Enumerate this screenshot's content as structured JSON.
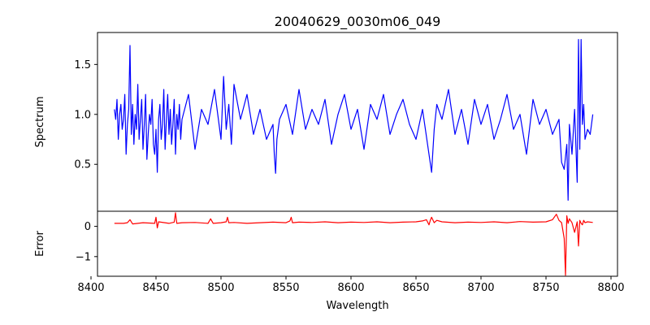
{
  "chart_data": [
    {
      "type": "line",
      "title": "20040629_0030m06_049",
      "ylabel": "Spectrum",
      "xlim": [
        8405,
        8805
      ],
      "ylim": [
        0.03,
        1.82
      ],
      "yticks": [
        0.5,
        1.0,
        1.5
      ],
      "ytick_labels": [
        "0.5",
        "1.0",
        "1.5"
      ],
      "grid": false,
      "series": [
        {
          "color": "#0000ff",
          "x": [
            8418,
            8419,
            8420,
            8421,
            8422,
            8423,
            8424,
            8425,
            8426,
            8427,
            8428,
            8429,
            8430,
            8431,
            8432,
            8433,
            8434,
            8435,
            8436,
            8437,
            8438,
            8439,
            8440,
            8441,
            8442,
            8443,
            8444,
            8445,
            8446,
            8447,
            8448,
            8449,
            8450,
            8451,
            8452,
            8453,
            8454,
            8455,
            8456,
            8457,
            8458,
            8459,
            8460,
            8461,
            8462,
            8463,
            8464,
            8465,
            8466,
            8467,
            8468,
            8469,
            8470,
            8475,
            8480,
            8485,
            8490,
            8495,
            8500,
            8502,
            8504,
            8506,
            8508,
            8510,
            8515,
            8520,
            8525,
            8530,
            8535,
            8540,
            8541,
            8542,
            8543,
            8545,
            8550,
            8555,
            8560,
            8565,
            8570,
            8575,
            8580,
            8585,
            8590,
            8595,
            8600,
            8605,
            8610,
            8615,
            8620,
            8625,
            8630,
            8635,
            8640,
            8645,
            8650,
            8655,
            8660,
            8662,
            8664,
            8666,
            8670,
            8675,
            8680,
            8685,
            8690,
            8695,
            8700,
            8705,
            8710,
            8715,
            8720,
            8725,
            8730,
            8735,
            8740,
            8745,
            8750,
            8755,
            8760,
            8762,
            8764,
            8766,
            8767,
            8768,
            8770,
            8772,
            8774,
            8775,
            8776,
            8777,
            8778,
            8779,
            8780,
            8782,
            8784,
            8786
          ],
          "y": [
            1.05,
            0.95,
            1.15,
            0.75,
            1.0,
            1.1,
            0.85,
            0.95,
            1.2,
            0.6,
            0.9,
            1.05,
            1.69,
            0.8,
            1.1,
            0.7,
            1.0,
            0.85,
            1.3,
            0.75,
            0.95,
            1.15,
            0.65,
            0.9,
            1.2,
            0.55,
            0.8,
            1.0,
            0.9,
            1.15,
            0.7,
            0.6,
            0.85,
            0.42,
            0.95,
            1.1,
            0.75,
            0.9,
            1.25,
            0.65,
            0.95,
            1.2,
            0.8,
            1.05,
            0.7,
            0.9,
            1.15,
            0.6,
            1.0,
            0.85,
            1.1,
            0.75,
            0.95,
            1.2,
            0.65,
            1.05,
            0.9,
            1.25,
            0.75,
            1.38,
            0.85,
            1.1,
            0.7,
            1.3,
            0.95,
            1.2,
            0.8,
            1.05,
            0.75,
            0.9,
            0.6,
            0.41,
            0.75,
            0.95,
            1.1,
            0.8,
            1.25,
            0.85,
            1.05,
            0.9,
            1.15,
            0.7,
            1.0,
            1.2,
            0.85,
            1.05,
            0.65,
            1.1,
            0.95,
            1.2,
            0.8,
            1.0,
            1.15,
            0.9,
            0.75,
            1.05,
            0.6,
            0.42,
            0.85,
            1.1,
            0.95,
            1.25,
            0.8,
            1.05,
            0.7,
            1.15,
            0.9,
            1.1,
            0.75,
            0.95,
            1.2,
            0.85,
            1.0,
            0.6,
            1.15,
            0.9,
            1.05,
            0.8,
            0.95,
            0.52,
            0.45,
            0.7,
            0.14,
            0.9,
            0.6,
            1.05,
            0.32,
            1.75,
            0.65,
            1.75,
            0.9,
            1.1,
            0.75,
            0.85,
            0.8,
            1.0
          ]
        }
      ]
    },
    {
      "type": "line",
      "xlabel": "Wavelength",
      "ylabel": "Error",
      "xlim": [
        8405,
        8805
      ],
      "ylim": [
        -1.65,
        0.5
      ],
      "xticks": [
        8400,
        8450,
        8500,
        8550,
        8600,
        8650,
        8700,
        8750,
        8800
      ],
      "xtick_labels": [
        "8400",
        "8450",
        "8500",
        "8550",
        "8600",
        "8650",
        "8700",
        "8750",
        "8800"
      ],
      "yticks": [
        0,
        -1
      ],
      "ytick_labels": [
        "0",
        "−1"
      ],
      "grid": false,
      "series": [
        {
          "color": "#ff0000",
          "x": [
            8418,
            8425,
            8428,
            8430,
            8432,
            8440,
            8449,
            8450,
            8451,
            8452,
            8460,
            8464,
            8465,
            8466,
            8470,
            8480,
            8490,
            8492,
            8494,
            8500,
            8504,
            8505,
            8506,
            8510,
            8520,
            8530,
            8540,
            8550,
            8553,
            8554,
            8555,
            8560,
            8570,
            8580,
            8590,
            8600,
            8610,
            8620,
            8630,
            8640,
            8650,
            8655,
            8658,
            8660,
            8661,
            8662,
            8664,
            8666,
            8670,
            8680,
            8690,
            8700,
            8710,
            8720,
            8730,
            8740,
            8750,
            8755,
            8758,
            8760,
            8762,
            8764,
            8765,
            8766,
            8767,
            8768,
            8770,
            8772,
            8774,
            8775,
            8776,
            8777,
            8778,
            8779,
            8780,
            8782,
            8786
          ],
          "y": [
            0.1,
            0.1,
            0.12,
            0.22,
            0.08,
            0.12,
            0.1,
            0.3,
            -0.05,
            0.15,
            0.1,
            0.14,
            0.45,
            0.1,
            0.12,
            0.13,
            0.1,
            0.25,
            0.1,
            0.12,
            0.15,
            0.3,
            0.12,
            0.13,
            0.1,
            0.12,
            0.14,
            0.12,
            0.18,
            0.3,
            0.12,
            0.14,
            0.13,
            0.15,
            0.12,
            0.14,
            0.13,
            0.15,
            0.12,
            0.14,
            0.15,
            0.18,
            0.22,
            0.05,
            0.2,
            0.3,
            0.12,
            0.2,
            0.15,
            0.12,
            0.14,
            0.13,
            0.15,
            0.12,
            0.16,
            0.14,
            0.15,
            0.22,
            0.4,
            0.2,
            0.12,
            -0.4,
            -1.62,
            0.35,
            0.1,
            0.25,
            0.12,
            -0.2,
            0.15,
            -0.65,
            0.2,
            0.1,
            0.05,
            0.2,
            0.12,
            0.15,
            0.13
          ]
        }
      ]
    }
  ]
}
